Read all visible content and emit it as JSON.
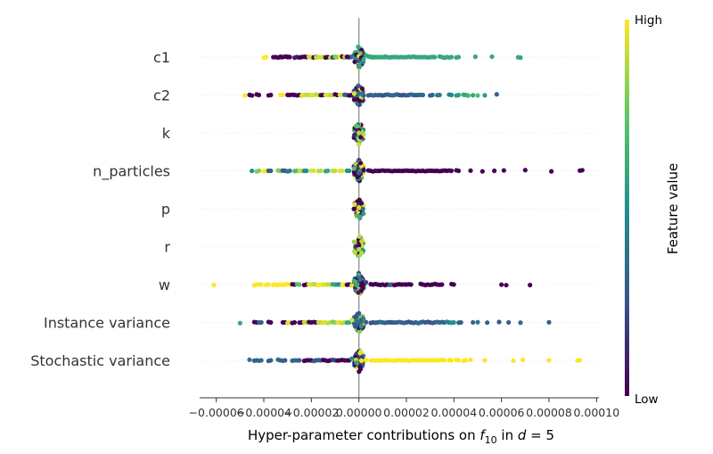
{
  "chart_data": {
    "type": "scatter",
    "subtype": "shap-beeswarm-summary",
    "xlabel_prefix": "Hyper-parameter contributions on ",
    "xlabel_math_f": "f",
    "xlabel_math_sub": "10",
    "xlabel_mid": " in ",
    "xlabel_math_d": "d",
    "xlabel_eq": " = 5",
    "xlim": [
      -6.7e-05,
      0.000101
    ],
    "xticks": [
      -6e-05,
      -4e-05,
      -2e-05,
      0.0,
      2e-05,
      4e-05,
      6e-05,
      8e-05,
      0.0001
    ],
    "xtick_labels": [
      "−0.00006",
      "−0.00004",
      "−0.00002",
      "0.00000",
      "0.00002",
      "0.00004",
      "0.00006",
      "0.00008",
      "0.00010"
    ],
    "zero_line_value": 0.0,
    "colorbar": {
      "title": "Feature value",
      "high_label": "High",
      "low_label": "Low",
      "colormap": "viridis",
      "colors": [
        "#440154",
        "#3b528b",
        "#21918c",
        "#5ec962",
        "#fde725"
      ]
    },
    "features": [
      {
        "name": "c1",
        "points": [
          [
            -4e-05,
            1.0
          ],
          [
            -3.6e-05,
            0.0
          ],
          [
            -3.4e-05,
            0.0
          ],
          [
            -3.3e-05,
            0.0
          ],
          [
            -3.1e-05,
            0.0
          ],
          [
            -3e-05,
            0.0
          ],
          [
            -2.7e-05,
            0.1
          ],
          [
            -2.5e-05,
            0.0
          ],
          [
            -2.3e-05,
            0.0
          ],
          [
            -2.1e-05,
            0.95
          ],
          [
            -2e-05,
            0.9
          ],
          [
            -1.9e-05,
            0.0
          ],
          [
            -1.8e-05,
            0.9
          ],
          [
            -1.6e-05,
            0.95
          ],
          [
            -1.5e-05,
            0.9
          ],
          [
            -1.4e-05,
            0.0
          ],
          [
            -1.2e-05,
            0.9
          ],
          [
            -1.1e-05,
            0.2
          ],
          [
            -1e-05,
            0.8
          ],
          [
            -8e-06,
            1.0
          ],
          [
            -7e-06,
            0.0
          ],
          [
            -6e-06,
            0.9
          ],
          [
            -5e-06,
            0.0
          ],
          [
            -3e-06,
            0.3
          ],
          [
            -2e-06,
            0.5
          ],
          [
            -1e-06,
            0.0
          ],
          [
            0.0,
            0.95
          ],
          [
            1e-06,
            0.0
          ],
          [
            2e-06,
            0.6
          ],
          [
            3e-06,
            0.6
          ],
          [
            4e-06,
            0.6
          ],
          [
            5e-06,
            0.6
          ],
          [
            6e-06,
            0.6
          ],
          [
            7e-06,
            0.6
          ],
          [
            8e-06,
            0.6
          ],
          [
            1e-05,
            0.6
          ],
          [
            1.1e-05,
            0.6
          ],
          [
            1.3e-05,
            0.6
          ],
          [
            1.5e-05,
            0.6
          ],
          [
            1.7e-05,
            0.6
          ],
          [
            1.9e-05,
            0.6
          ],
          [
            2.1e-05,
            0.6
          ],
          [
            2.3e-05,
            0.6
          ],
          [
            2.5e-05,
            0.6
          ],
          [
            2.7e-05,
            0.6
          ],
          [
            2.9e-05,
            0.6
          ],
          [
            3.1e-05,
            0.6
          ],
          [
            3.4e-05,
            0.6
          ],
          [
            3.6e-05,
            0.6
          ],
          [
            3.8e-05,
            0.6
          ],
          [
            4.1e-05,
            0.6
          ],
          [
            4.9e-05,
            0.6
          ],
          [
            5.6e-05,
            0.6
          ],
          [
            6.7e-05,
            0.6
          ],
          [
            6.8e-05,
            0.6
          ]
        ],
        "center_density": 70
      },
      {
        "name": "c2",
        "points": [
          [
            -4.8e-05,
            1.0
          ],
          [
            -4.6e-05,
            0.0
          ],
          [
            -4.5e-05,
            0.0
          ],
          [
            -4.3e-05,
            0.0
          ],
          [
            -3.8e-05,
            0.0
          ],
          [
            -3.3e-05,
            1.0
          ],
          [
            -3e-05,
            0.0
          ],
          [
            -2.8e-05,
            0.0
          ],
          [
            -2.6e-05,
            0.0
          ],
          [
            -2.4e-05,
            0.95
          ],
          [
            -2.2e-05,
            0.9
          ],
          [
            -2e-05,
            0.95
          ],
          [
            -1.8e-05,
            0.9
          ],
          [
            -1.6e-05,
            0.0
          ],
          [
            -1.4e-05,
            0.95
          ],
          [
            -1.2e-05,
            0.9
          ],
          [
            -1e-05,
            0.0
          ],
          [
            -8e-06,
            0.95
          ],
          [
            -6e-06,
            0.3
          ],
          [
            -4e-06,
            0.0
          ],
          [
            -2e-06,
            0.95
          ],
          [
            0.0,
            0.35
          ],
          [
            2e-06,
            0.3
          ],
          [
            4e-06,
            0.3
          ],
          [
            6e-06,
            0.35
          ],
          [
            8e-06,
            0.3
          ],
          [
            1e-05,
            0.25
          ],
          [
            1.2e-05,
            0.3
          ],
          [
            1.4e-05,
            0.35
          ],
          [
            1.6e-05,
            0.3
          ],
          [
            1.8e-05,
            0.25
          ],
          [
            2e-05,
            0.3
          ],
          [
            2.2e-05,
            0.35
          ],
          [
            2.4e-05,
            0.3
          ],
          [
            2.6e-05,
            0.35
          ],
          [
            3e-05,
            0.3
          ],
          [
            3.3e-05,
            0.4
          ],
          [
            3.8e-05,
            0.45
          ],
          [
            4.1e-05,
            0.55
          ],
          [
            4.4e-05,
            0.6
          ],
          [
            4.6e-05,
            0.65
          ],
          [
            4.8e-05,
            0.6
          ],
          [
            5e-05,
            0.7
          ],
          [
            5.3e-05,
            0.55
          ],
          [
            5.8e-05,
            0.3
          ]
        ],
        "center_density": 60
      },
      {
        "name": "k",
        "points": [
          [
            0.0,
            0.0
          ],
          [
            0.0,
            0.9
          ]
        ],
        "center_density": 40
      },
      {
        "name": "n_particles",
        "points": [
          [
            -4.5e-05,
            0.5
          ],
          [
            -4.3e-05,
            0.8
          ],
          [
            -4e-05,
            1.0
          ],
          [
            -3.8e-05,
            0.3
          ],
          [
            -3.4e-05,
            0.8
          ],
          [
            -3.2e-05,
            0.3
          ],
          [
            -3e-05,
            0.4
          ],
          [
            -2.7e-05,
            0.7
          ],
          [
            -2.5e-05,
            0.9
          ],
          [
            -2.3e-05,
            0.5
          ],
          [
            -2e-05,
            0.95
          ],
          [
            -1.7e-05,
            0.9
          ],
          [
            -1.4e-05,
            0.6
          ],
          [
            -1.1e-05,
            0.9
          ],
          [
            -8e-06,
            0.95
          ],
          [
            -5e-06,
            0.5
          ],
          [
            -2e-06,
            0.7
          ],
          [
            0.0,
            0.3
          ],
          [
            2e-06,
            0.0
          ],
          [
            4e-06,
            0.0
          ],
          [
            6e-06,
            0.0
          ],
          [
            8e-06,
            0.0
          ],
          [
            1e-05,
            0.0
          ],
          [
            1.2e-05,
            0.0
          ],
          [
            1.4e-05,
            0.0
          ],
          [
            1.6e-05,
            0.0
          ],
          [
            1.8e-05,
            0.0
          ],
          [
            2e-05,
            0.0
          ],
          [
            2.2e-05,
            0.0
          ],
          [
            2.4e-05,
            0.0
          ],
          [
            2.6e-05,
            0.0
          ],
          [
            2.8e-05,
            0.0
          ],
          [
            3e-05,
            0.0
          ],
          [
            3.2e-05,
            0.0
          ],
          [
            3.4e-05,
            0.0
          ],
          [
            3.6e-05,
            0.0
          ],
          [
            3.8e-05,
            0.0
          ],
          [
            4.1e-05,
            0.0
          ],
          [
            4.7e-05,
            0.0
          ],
          [
            5.2e-05,
            0.0
          ],
          [
            5.7e-05,
            0.0
          ],
          [
            6.1e-05,
            0.0
          ],
          [
            7e-05,
            0.0
          ],
          [
            8.1e-05,
            0.0
          ],
          [
            9.3e-05,
            0.0
          ],
          [
            9.4e-05,
            0.0
          ]
        ],
        "center_density": 80
      },
      {
        "name": "p",
        "points": [
          [
            0.0,
            0.0
          ],
          [
            0.0,
            0.95
          ]
        ],
        "center_density": 40
      },
      {
        "name": "r",
        "points": [
          [
            0.0,
            0.0
          ],
          [
            0.0,
            0.9
          ]
        ],
        "center_density": 40
      },
      {
        "name": "w",
        "points": [
          [
            -6.1e-05,
            1.0
          ],
          [
            -4.4e-05,
            1.0
          ],
          [
            -4.2e-05,
            1.0
          ],
          [
            -3.9e-05,
            1.0
          ],
          [
            -3.6e-05,
            1.0
          ],
          [
            -3.4e-05,
            1.0
          ],
          [
            -3.2e-05,
            1.0
          ],
          [
            -3e-05,
            1.0
          ],
          [
            -2.8e-05,
            0.0
          ],
          [
            -2.6e-05,
            0.7
          ],
          [
            -2.3e-05,
            0.0
          ],
          [
            -2.1e-05,
            0.95
          ],
          [
            -1.9e-05,
            0.9
          ],
          [
            -1.7e-05,
            1.0
          ],
          [
            -1.5e-05,
            0.95
          ],
          [
            -1.3e-05,
            0.9
          ],
          [
            -1.1e-05,
            0.6
          ],
          [
            -9e-06,
            0.5
          ],
          [
            -7e-06,
            1.0
          ],
          [
            -5e-06,
            0.0
          ],
          [
            -3e-06,
            0.95
          ],
          [
            -1e-06,
            0.6
          ],
          [
            1e-06,
            0.0
          ],
          [
            3e-06,
            0.2
          ],
          [
            5e-06,
            0.0
          ],
          [
            7e-06,
            0.0
          ],
          [
            9e-06,
            0.0
          ],
          [
            1.1e-05,
            0.0
          ],
          [
            1.3e-05,
            0.3
          ],
          [
            1.5e-05,
            0.0
          ],
          [
            1.7e-05,
            0.0
          ],
          [
            1.9e-05,
            0.0
          ],
          [
            2.1e-05,
            0.0
          ],
          [
            2.6e-05,
            0.0
          ],
          [
            2.8e-05,
            0.0
          ],
          [
            3e-05,
            0.0
          ],
          [
            3.2e-05,
            0.0
          ],
          [
            3.4e-05,
            0.0
          ],
          [
            3.9e-05,
            0.0
          ],
          [
            6e-05,
            0.0
          ],
          [
            6.2e-05,
            0.0
          ],
          [
            7.2e-05,
            0.0
          ]
        ],
        "center_density": 80
      },
      {
        "name": "Instance variance",
        "points": [
          [
            -5e-05,
            0.6
          ],
          [
            -4.4e-05,
            0.0
          ],
          [
            -4.2e-05,
            0.3
          ],
          [
            -3.8e-05,
            0.0
          ],
          [
            -3.2e-05,
            0.0
          ],
          [
            -3e-05,
            0.95
          ],
          [
            -2.8e-05,
            0.0
          ],
          [
            -2.5e-05,
            0.0
          ],
          [
            -2.3e-05,
            0.9
          ],
          [
            -2.1e-05,
            0.0
          ],
          [
            -1.9e-05,
            0.0
          ],
          [
            -1.7e-05,
            0.9
          ],
          [
            -1.5e-05,
            0.95
          ],
          [
            -1.3e-05,
            0.9
          ],
          [
            -1.1e-05,
            0.8
          ],
          [
            -9e-06,
            0.95
          ],
          [
            -7e-06,
            0.9
          ],
          [
            -5e-06,
            0.6
          ],
          [
            -3e-06,
            0.95
          ],
          [
            -1e-06,
            0.4
          ],
          [
            1e-06,
            0.3
          ],
          [
            3e-06,
            0.3
          ],
          [
            5e-06,
            0.25
          ],
          [
            7e-06,
            0.3
          ],
          [
            9e-06,
            0.35
          ],
          [
            1.1e-05,
            0.3
          ],
          [
            1.3e-05,
            0.25
          ],
          [
            1.5e-05,
            0.3
          ],
          [
            1.7e-05,
            0.35
          ],
          [
            1.9e-05,
            0.3
          ],
          [
            2.1e-05,
            0.25
          ],
          [
            2.3e-05,
            0.3
          ],
          [
            2.5e-05,
            0.35
          ],
          [
            2.7e-05,
            0.3
          ],
          [
            2.9e-05,
            0.25
          ],
          [
            3.1e-05,
            0.3
          ],
          [
            3.3e-05,
            0.35
          ],
          [
            3.5e-05,
            0.3
          ],
          [
            3.7e-05,
            0.45
          ],
          [
            3.9e-05,
            0.5
          ],
          [
            4.2e-05,
            0.3
          ],
          [
            4.8e-05,
            0.3
          ],
          [
            5e-05,
            0.4
          ],
          [
            5.4e-05,
            0.3
          ],
          [
            5.9e-05,
            0.25
          ],
          [
            6.3e-05,
            0.3
          ],
          [
            6.8e-05,
            0.35
          ],
          [
            8e-05,
            0.3
          ]
        ],
        "center_density": 80
      },
      {
        "name": "Stochastic variance",
        "points": [
          [
            -4.6e-05,
            0.35
          ],
          [
            -4.4e-05,
            0.3
          ],
          [
            -4.2e-05,
            0.35
          ],
          [
            -3.8e-05,
            0.3
          ],
          [
            -3.4e-05,
            0.35
          ],
          [
            -3.2e-05,
            0.3
          ],
          [
            -2.8e-05,
            0.35
          ],
          [
            -2.6e-05,
            0.3
          ],
          [
            -2.3e-05,
            0.0
          ],
          [
            -2.1e-05,
            0.0
          ],
          [
            -1.9e-05,
            0.25
          ],
          [
            -1.7e-05,
            0.3
          ],
          [
            -1.5e-05,
            0.0
          ],
          [
            -1.3e-05,
            0.0
          ],
          [
            -1.1e-05,
            0.2
          ],
          [
            -9e-06,
            0.0
          ],
          [
            -7e-06,
            0.0
          ],
          [
            -5e-06,
            0.0
          ],
          [
            -3e-06,
            0.5
          ],
          [
            -1e-06,
            0.6
          ],
          [
            1e-06,
            1.0
          ],
          [
            3e-06,
            1.0
          ],
          [
            5e-06,
            1.0
          ],
          [
            7e-06,
            1.0
          ],
          [
            9e-06,
            1.0
          ],
          [
            1.1e-05,
            1.0
          ],
          [
            1.3e-05,
            1.0
          ],
          [
            1.5e-05,
            1.0
          ],
          [
            1.7e-05,
            1.0
          ],
          [
            1.9e-05,
            1.0
          ],
          [
            2.1e-05,
            1.0
          ],
          [
            2.3e-05,
            1.0
          ],
          [
            2.5e-05,
            1.0
          ],
          [
            2.7e-05,
            1.0
          ],
          [
            2.9e-05,
            1.0
          ],
          [
            3.1e-05,
            1.0
          ],
          [
            3.3e-05,
            1.0
          ],
          [
            3.5e-05,
            1.0
          ],
          [
            3.8e-05,
            1.0
          ],
          [
            4.1e-05,
            1.0
          ],
          [
            4.4e-05,
            1.0
          ],
          [
            4.7e-05,
            1.0
          ],
          [
            5.3e-05,
            1.0
          ],
          [
            6.5e-05,
            1.0
          ],
          [
            6.9e-05,
            1.0
          ],
          [
            8e-05,
            1.0
          ],
          [
            9.2e-05,
            1.0
          ],
          [
            9.3e-05,
            1.0
          ]
        ],
        "center_density": 70
      }
    ]
  }
}
